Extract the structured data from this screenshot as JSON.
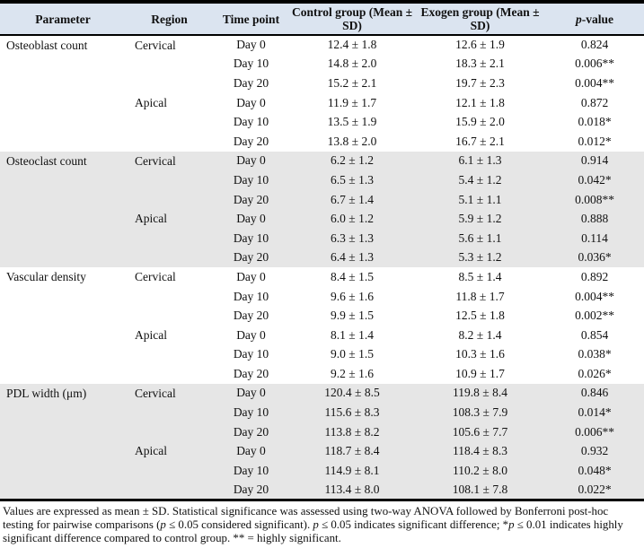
{
  "colors": {
    "header_bg": "#dbe4f0",
    "shaded_section_bg": "#e6e6e6",
    "border": "#000000",
    "text": "#111111"
  },
  "table": {
    "header": {
      "parameter": "Parameter",
      "region": "Region",
      "time_point": "Time point",
      "control": "Control group (Mean ± SD)",
      "exogen": "Exogen group (Mean ± SD)",
      "p_italic": "p",
      "p_rest": "-value"
    },
    "sections": [
      {
        "parameter": "Osteoblast count",
        "shaded": false,
        "groups": [
          {
            "region": "Cervical",
            "rows": [
              {
                "time": "Day 0",
                "control": "12.4 ± 1.8",
                "exogen": "12.6 ± 1.9",
                "p": "0.824"
              },
              {
                "time": "Day 10",
                "control": "14.8 ± 2.0",
                "exogen": "18.3 ± 2.1",
                "p": "0.006**"
              },
              {
                "time": "Day 20",
                "control": "15.2 ± 2.1",
                "exogen": "19.7 ± 2.3",
                "p": "0.004**"
              }
            ]
          },
          {
            "region": "Apical",
            "rows": [
              {
                "time": "Day 0",
                "control": "11.9 ± 1.7",
                "exogen": "12.1 ± 1.8",
                "p": "0.872"
              },
              {
                "time": "Day 10",
                "control": "13.5 ± 1.9",
                "exogen": "15.9 ± 2.0",
                "p": "0.018*"
              },
              {
                "time": "Day 20",
                "control": "13.8 ± 2.0",
                "exogen": "16.7 ± 2.1",
                "p": "0.012*"
              }
            ]
          }
        ]
      },
      {
        "parameter": "Osteoclast count",
        "shaded": true,
        "groups": [
          {
            "region": "Cervical",
            "rows": [
              {
                "time": "Day 0",
                "control": "6.2 ± 1.2",
                "exogen": "6.1 ± 1.3",
                "p": "0.914"
              },
              {
                "time": "Day 10",
                "control": "6.5 ± 1.3",
                "exogen": "5.4 ± 1.2",
                "p": "0.042*"
              },
              {
                "time": "Day 20",
                "control": "6.7 ± 1.4",
                "exogen": "5.1 ± 1.1",
                "p": "0.008**"
              }
            ]
          },
          {
            "region": "Apical",
            "rows": [
              {
                "time": "Day 0",
                "control": "6.0 ± 1.2",
                "exogen": "5.9 ± 1.2",
                "p": "0.888"
              },
              {
                "time": "Day 10",
                "control": "6.3 ± 1.3",
                "exogen": "5.6 ± 1.1",
                "p": "0.114"
              },
              {
                "time": "Day 20",
                "control": "6.4 ± 1.3",
                "exogen": "5.3 ± 1.2",
                "p": "0.036*"
              }
            ]
          }
        ]
      },
      {
        "parameter": "Vascular density",
        "shaded": false,
        "groups": [
          {
            "region": "Cervical",
            "rows": [
              {
                "time": "Day 0",
                "control": "8.4 ± 1.5",
                "exogen": "8.5 ± 1.4",
                "p": "0.892"
              },
              {
                "time": "Day 10",
                "control": "9.6 ± 1.6",
                "exogen": "11.8 ± 1.7",
                "p": "0.004**"
              },
              {
                "time": "Day 20",
                "control": "9.9 ± 1.5",
                "exogen": "12.5 ± 1.8",
                "p": "0.002**"
              }
            ]
          },
          {
            "region": "Apical",
            "rows": [
              {
                "time": "Day 0",
                "control": "8.1 ± 1.4",
                "exogen": "8.2 ± 1.4",
                "p": "0.854"
              },
              {
                "time": "Day 10",
                "control": "9.0 ± 1.5",
                "exogen": "10.3 ± 1.6",
                "p": "0.038*"
              },
              {
                "time": "Day 20",
                "control": "9.2 ± 1.6",
                "exogen": "10.9 ± 1.7",
                "p": "0.026*"
              }
            ]
          }
        ]
      },
      {
        "parameter": "PDL width (μm)",
        "shaded": true,
        "groups": [
          {
            "region": "Cervical",
            "rows": [
              {
                "time": "Day 0",
                "control": "120.4 ± 8.5",
                "exogen": "119.8 ± 8.4",
                "p": "0.846"
              },
              {
                "time": "Day 10",
                "control": "115.6 ± 8.3",
                "exogen": "108.3 ± 7.9",
                "p": "0.014*"
              },
              {
                "time": "Day 20",
                "control": "113.8 ± 8.2",
                "exogen": "105.6 ± 7.7",
                "p": "0.006**"
              }
            ]
          },
          {
            "region": "Apical",
            "rows": [
              {
                "time": "Day 0",
                "control": "118.7 ± 8.4",
                "exogen": "118.4 ± 8.3",
                "p": "0.932"
              },
              {
                "time": "Day 10",
                "control": "114.9 ± 8.1",
                "exogen": "110.2 ± 8.0",
                "p": "0.048*"
              },
              {
                "time": "Day 20",
                "control": "113.4 ± 8.0",
                "exogen": "108.1 ± 7.8",
                "p": "0.022*"
              }
            ]
          }
        ]
      }
    ]
  },
  "footnote": {
    "segments": [
      {
        "text": "Values are expressed as mean ± SD. Statistical significance was assessed using two-way ANOVA followed by Bonferroni post-hoc testing for pairwise comparisons (",
        "italic": false
      },
      {
        "text": "p",
        "italic": true
      },
      {
        "text": " ≤ 0.05 considered significant). ",
        "italic": false
      },
      {
        "text": "p",
        "italic": true
      },
      {
        "text": " ≤ 0.05 indicates significant difference; *",
        "italic": false
      },
      {
        "text": "p",
        "italic": true
      },
      {
        "text": " ≤ 0.01 indicates highly significant difference compared to control group. ** = highly significant.",
        "italic": false
      }
    ]
  }
}
